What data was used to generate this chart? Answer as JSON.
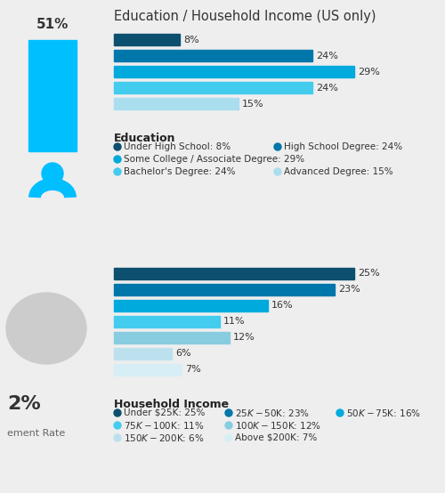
{
  "title": "Education / Household Income (US only)",
  "bg_color": "#eeeeee",
  "left_top_bg": "#ffffff",
  "left_bot_bg": "#e8e8e8",
  "right_bg": "#ffffff",
  "divider_bg": "#eeeeee",
  "edu_bars": [
    {
      "value": 8,
      "color": "#0d4f6e",
      "label": "8%"
    },
    {
      "value": 24,
      "color": "#0077aa",
      "label": "24%"
    },
    {
      "value": 29,
      "color": "#00aadd",
      "label": "29%"
    },
    {
      "value": 24,
      "color": "#44ccee",
      "label": "24%"
    },
    {
      "value": 15,
      "color": "#aadeee",
      "label": "15%"
    }
  ],
  "inc_bars": [
    {
      "value": 25,
      "color": "#0d4f6e",
      "label": "25%"
    },
    {
      "value": 23,
      "color": "#0077aa",
      "label": "23%"
    },
    {
      "value": 16,
      "color": "#00aadd",
      "label": "16%"
    },
    {
      "value": 11,
      "color": "#44ccee",
      "label": "11%"
    },
    {
      "value": 12,
      "color": "#88cce0",
      "label": "12%"
    },
    {
      "value": 6,
      "color": "#bde0ee",
      "label": "6%"
    },
    {
      "value": 7,
      "color": "#d8eef6",
      "label": "7%"
    }
  ],
  "edu_legend": [
    [
      {
        "dot": "#0d4f6e",
        "text": "Under High School: 8%"
      },
      {
        "dot": "#0077aa",
        "text": "High School Degree: 24%"
      }
    ],
    [
      {
        "dot": "#00aadd",
        "text": "Some College / Associate Degree: 29%"
      }
    ],
    [
      {
        "dot": "#44ccee",
        "text": "Bachelor's Degree: 24%"
      },
      {
        "dot": "#aadeee",
        "text": "Advanced Degree: 15%"
      }
    ]
  ],
  "inc_legend": [
    [
      {
        "dot": "#0d4f6e",
        "text": "Under $25K: 25%"
      },
      {
        "dot": "#0077aa",
        "text": "$25K-$50K: 23%"
      },
      {
        "dot": "#00aadd",
        "text": "$50K-$75K: 16%"
      }
    ],
    [
      {
        "dot": "#44ccee",
        "text": "$75K-$100K: 11%"
      },
      {
        "dot": "#88cce0",
        "text": "$100K-$150K: 12%"
      }
    ],
    [
      {
        "dot": "#bde0ee",
        "text": "$150K-$200K: 6%"
      },
      {
        "dot": "#d8eef6",
        "text": "Above $200K: 7%"
      }
    ]
  ],
  "left_bar_color": "#00bfff",
  "left_bar_label": "51%",
  "person_color": "#00bfff",
  "engage_pct": "2%",
  "engage_label": "ement Rate"
}
